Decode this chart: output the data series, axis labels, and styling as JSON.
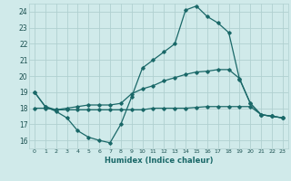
{
  "xlabel": "Humidex (Indice chaleur)",
  "bg_color": "#d0eaea",
  "grid_color": "#b0d0d0",
  "line_color": "#1a6868",
  "xlim": [
    -0.5,
    23.5
  ],
  "ylim": [
    15.5,
    24.5
  ],
  "xticks": [
    0,
    1,
    2,
    3,
    4,
    5,
    6,
    7,
    8,
    9,
    10,
    11,
    12,
    13,
    14,
    15,
    16,
    17,
    18,
    19,
    20,
    21,
    22,
    23
  ],
  "yticks": [
    16,
    17,
    18,
    19,
    20,
    21,
    22,
    23,
    24
  ],
  "line1_x": [
    0,
    1,
    2,
    3,
    4,
    5,
    6,
    7,
    8,
    9,
    10,
    11,
    12,
    13,
    14,
    15,
    16,
    17,
    18,
    19,
    20,
    21,
    22,
    23
  ],
  "line1_y": [
    19.0,
    18.1,
    17.8,
    17.4,
    16.6,
    16.2,
    16.0,
    15.85,
    17.0,
    18.7,
    20.5,
    21.0,
    21.5,
    22.0,
    24.1,
    24.35,
    23.7,
    23.3,
    22.7,
    19.8,
    18.3,
    17.6,
    17.5,
    17.4
  ],
  "line2_x": [
    0,
    1,
    2,
    3,
    4,
    5,
    6,
    7,
    8,
    9,
    10,
    11,
    12,
    13,
    14,
    15,
    16,
    17,
    18,
    19,
    20,
    21,
    22,
    23
  ],
  "line2_y": [
    18.0,
    18.0,
    17.9,
    17.9,
    17.9,
    17.9,
    17.9,
    17.9,
    17.9,
    17.9,
    17.9,
    18.0,
    18.0,
    18.0,
    18.0,
    18.05,
    18.1,
    18.1,
    18.1,
    18.1,
    18.1,
    17.6,
    17.5,
    17.4
  ],
  "line3_x": [
    0,
    1,
    2,
    3,
    4,
    5,
    6,
    7,
    8,
    9,
    10,
    11,
    12,
    13,
    14,
    15,
    16,
    17,
    18,
    19,
    20,
    21,
    22,
    23
  ],
  "line3_y": [
    19.0,
    18.1,
    17.9,
    18.0,
    18.1,
    18.2,
    18.2,
    18.2,
    18.3,
    18.9,
    19.2,
    19.4,
    19.7,
    19.9,
    20.1,
    20.25,
    20.3,
    20.4,
    20.4,
    19.85,
    18.3,
    17.6,
    17.5,
    17.4
  ]
}
